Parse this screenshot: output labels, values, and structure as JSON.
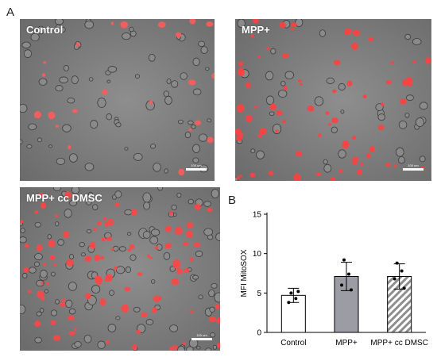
{
  "figure": {
    "panel_a_label": "A",
    "panel_b_label": "B"
  },
  "micrographs": [
    {
      "label": "Control",
      "scale_bar": "100 um",
      "stain_color": "#ff5a5a",
      "density": "low"
    },
    {
      "label": "MPP+",
      "scale_bar": "100 um",
      "stain_color": "#ff4040",
      "density": "medium"
    },
    {
      "label": "MPP+ cc DMSC",
      "scale_bar": "100 um",
      "stain_color": "#ff4545",
      "density": "high"
    }
  ],
  "chart_data": {
    "type": "bar",
    "title": "",
    "xlabel": "",
    "ylabel": "MFI MitoSOX",
    "ylim": [
      0,
      15
    ],
    "yticks": [
      0,
      5,
      10,
      15
    ],
    "categories": [
      "Control",
      "MPP+",
      "MPP+ cc DMSC"
    ],
    "values": [
      4.7,
      7.1,
      7.1
    ],
    "error": [
      0.9,
      1.8,
      1.6
    ],
    "fills": [
      "#ffffff",
      "#9c9ca4",
      "hatch"
    ],
    "points": [
      [
        5.0,
        4.3,
        3.8,
        5.2
      ],
      [
        9.2,
        7.4,
        6.0,
        5.4
      ],
      [
        8.8,
        7.8,
        6.8,
        5.6
      ]
    ],
    "grid": false
  }
}
